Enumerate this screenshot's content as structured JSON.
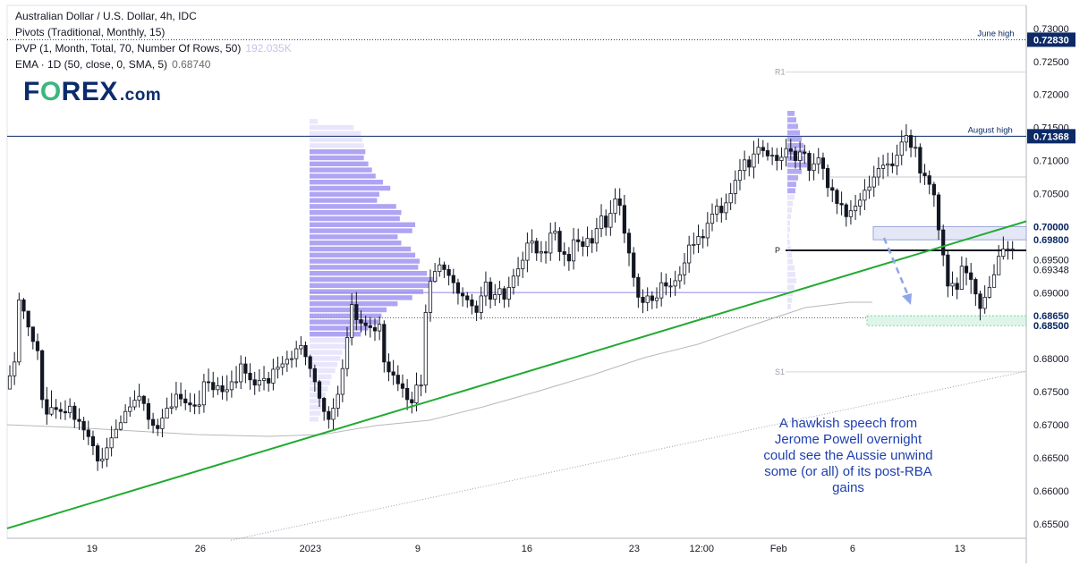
{
  "header": {
    "line1": "Australian Dollar / U.S. Dollar, 4h, IDC",
    "line2": "Pivots (Traditional, Monthly, 15)",
    "line3": "PVP (1, Month, Total, 70, Number Of Rows, 50)",
    "line3_value": "192.035K",
    "line4": "EMA · 1D (50, close, 0, SMA, 5)",
    "line4_value": "0.68740"
  },
  "logo": {
    "text_a": "F",
    "text_o": "O",
    "text_b": "REX",
    "text_c": ".com"
  },
  "annotation": "A hawkish speech from Jerome Powell overnight could see the Aussie unwind some (or all) of its post-RBA gains",
  "colors": {
    "up_candle": "#ffffff",
    "candle_outline": "#131722",
    "trendline": "#22aa33",
    "pvp": "#9b8df0",
    "note": "#1f3fae",
    "arrow": "#8fa6e8",
    "label_bg": "#0d2a66"
  },
  "chart_data": {
    "type": "candlestick",
    "title": "Australian Dollar / U.S. Dollar, 4h, IDC",
    "y_axis": {
      "ticks": [
        "0.73000",
        "0.72500",
        "0.72000",
        "0.71500",
        "0.71000",
        "0.70500",
        "0.70000",
        "0.69500",
        "0.69000",
        "0.68500",
        "0.68000",
        "0.67500",
        "0.67000",
        "0.66500",
        "0.66000",
        "0.65500"
      ],
      "range": [
        0.6528,
        0.7335
      ]
    },
    "x_axis": {
      "ticks": [
        "19",
        "26",
        "2023",
        "9",
        "16",
        "23",
        "12:00",
        "Feb",
        "6",
        "13"
      ]
    },
    "price_labels": [
      {
        "value": "0.72830",
        "caption": "June high",
        "style": "dark"
      },
      {
        "value": "0.71368",
        "caption": "August high",
        "style": "dark"
      },
      {
        "value": "0.70000",
        "caption": "",
        "style": "bold"
      },
      {
        "value": "0.69800",
        "caption": "",
        "style": "bold"
      },
      {
        "value": "0.69348",
        "caption": "",
        "style": "plain"
      },
      {
        "value": "0.68650",
        "caption": "",
        "style": "bold"
      },
      {
        "value": "0.68500",
        "caption": "",
        "style": "bold"
      }
    ],
    "pivot_labels": [
      "R1",
      "P",
      "S1"
    ],
    "pivots": {
      "R1": 0.7234,
      "P": 0.6964,
      "S1": 0.678
    },
    "horizontal_levels": [
      0.7283,
      0.71368,
      0.7075,
      0.69,
      0.6862
    ],
    "zones": [
      {
        "from": 0.698,
        "to": 0.7,
        "name": "resistance zone"
      },
      {
        "from": 0.685,
        "to": 0.6865,
        "name": "support zone"
      }
    ],
    "trendline": {
      "start_price": 0.6543,
      "end_price": 0.7008
    },
    "dotted_trend": {
      "start_price": 0.6525,
      "end_price": 0.6781
    },
    "ema_end": 0.6874,
    "volume_profile_peak": 0.6919,
    "candles": {
      "count": 220,
      "closes": [
        0.6774,
        0.6795,
        0.6889,
        0.6872,
        0.6848,
        0.6826,
        0.6812,
        0.6738,
        0.6716,
        0.6726,
        0.6723,
        0.672,
        0.6718,
        0.6728,
        0.6708,
        0.6705,
        0.6692,
        0.6682,
        0.6668,
        0.6645,
        0.6648,
        0.6665,
        0.668,
        0.6693,
        0.6703,
        0.672,
        0.6727,
        0.6737,
        0.6743,
        0.6732,
        0.6708,
        0.6699,
        0.6694,
        0.671,
        0.6725,
        0.6727,
        0.6746,
        0.6739,
        0.6733,
        0.673,
        0.6728,
        0.673,
        0.6765,
        0.6764,
        0.6753,
        0.6759,
        0.675,
        0.6753,
        0.6765,
        0.6765,
        0.6792,
        0.6778,
        0.6768,
        0.676,
        0.6767,
        0.677,
        0.6763,
        0.6784,
        0.6787,
        0.6792,
        0.6799,
        0.68,
        0.6815,
        0.682,
        0.6803,
        0.6785,
        0.6765,
        0.674,
        0.672,
        0.6708,
        0.6725,
        0.6746,
        0.6785,
        0.6832,
        0.6882,
        0.6859,
        0.6854,
        0.685,
        0.6847,
        0.6842,
        0.6852,
        0.6795,
        0.678,
        0.6775,
        0.6762,
        0.6755,
        0.6738,
        0.6733,
        0.676,
        0.676,
        0.687,
        0.6917,
        0.6932,
        0.6942,
        0.6935,
        0.6926,
        0.6915,
        0.6899,
        0.6895,
        0.6889,
        0.688,
        0.687,
        0.6895,
        0.6916,
        0.689,
        0.6897,
        0.6906,
        0.689,
        0.6908,
        0.6925,
        0.6936,
        0.6949,
        0.6975,
        0.6978,
        0.696,
        0.6962,
        0.696,
        0.699,
        0.6993,
        0.6962,
        0.6958,
        0.6948,
        0.698,
        0.6977,
        0.697,
        0.6982,
        0.6975,
        0.6997,
        0.7016,
        0.6999,
        0.702,
        0.7042,
        0.7032,
        0.699,
        0.696,
        0.6923,
        0.6893,
        0.6885,
        0.6895,
        0.6888,
        0.6892,
        0.6915,
        0.691,
        0.691,
        0.6918,
        0.6927,
        0.6945,
        0.6972,
        0.6973,
        0.6985,
        0.6983,
        0.7005,
        0.7019,
        0.7031,
        0.7021,
        0.7036,
        0.705,
        0.707,
        0.7085,
        0.7101,
        0.709,
        0.711,
        0.712,
        0.7115,
        0.7107,
        0.7108,
        0.71,
        0.7105,
        0.7118,
        0.7114,
        0.71,
        0.7113,
        0.7111,
        0.7085,
        0.7095,
        0.7104,
        0.7088,
        0.7059,
        0.7055,
        0.7035,
        0.7033,
        0.7015,
        0.7024,
        0.7031,
        0.704,
        0.7055,
        0.706,
        0.7075,
        0.7088,
        0.7093,
        0.7095,
        0.7092,
        0.7108,
        0.7128,
        0.7138,
        0.712,
        0.712,
        0.7081,
        0.7077,
        0.7064,
        0.7048,
        0.6995,
        0.6957,
        0.691,
        0.6914,
        0.6905,
        0.694,
        0.693,
        0.692,
        0.6898,
        0.6876,
        0.6893,
        0.6908,
        0.6927,
        0.6955,
        0.6966,
        0.6966,
        0.6966
      ],
      "highs": [
        0.679,
        0.681,
        0.69,
        0.6892,
        0.6869,
        0.6847,
        0.6838,
        0.6814,
        0.6757,
        0.6752,
        0.6739,
        0.6734,
        0.6737,
        0.674,
        0.6734,
        0.6725,
        0.6712,
        0.6706,
        0.6691,
        0.6672,
        0.6665,
        0.668,
        0.6698,
        0.6708,
        0.6714,
        0.6731,
        0.6742,
        0.6752,
        0.6762,
        0.6745,
        0.674,
        0.6718,
        0.6709,
        0.6724,
        0.6741,
        0.6748,
        0.6765,
        0.6764,
        0.6753,
        0.6748,
        0.6747,
        0.6752,
        0.6777,
        0.6785,
        0.678,
        0.6772,
        0.6774,
        0.6775,
        0.6782,
        0.6789,
        0.6805,
        0.6803,
        0.6793,
        0.678,
        0.6784,
        0.6789,
        0.678,
        0.68,
        0.6803,
        0.6804,
        0.6812,
        0.6812,
        0.6827,
        0.6834,
        0.6826,
        0.6806,
        0.6791,
        0.6768,
        0.6742,
        0.6728,
        0.674,
        0.6759,
        0.6799,
        0.6848,
        0.6899,
        0.6901,
        0.6873,
        0.6865,
        0.6863,
        0.6861,
        0.6864,
        0.6858,
        0.6808,
        0.6798,
        0.679,
        0.6776,
        0.6769,
        0.675,
        0.6779,
        0.6776,
        0.6882,
        0.6935,
        0.6945,
        0.6953,
        0.6947,
        0.6942,
        0.6936,
        0.6921,
        0.6908,
        0.6901,
        0.6898,
        0.6888,
        0.6909,
        0.6932,
        0.6923,
        0.6913,
        0.6918,
        0.691,
        0.6924,
        0.6936,
        0.6954,
        0.6962,
        0.6991,
        0.6996,
        0.6983,
        0.6978,
        0.6978,
        0.7006,
        0.7007,
        0.6999,
        0.6976,
        0.6969,
        0.6998,
        0.6997,
        0.6985,
        0.7,
        0.6995,
        0.7013,
        0.7034,
        0.7026,
        0.704,
        0.7058,
        0.7058,
        0.7048,
        0.6997,
        0.6969,
        0.6929,
        0.6905,
        0.6908,
        0.6902,
        0.6908,
        0.6931,
        0.6929,
        0.6922,
        0.6933,
        0.694,
        0.696,
        0.6986,
        0.6991,
        0.7003,
        0.6996,
        0.7022,
        0.7035,
        0.7042,
        0.7044,
        0.705,
        0.7066,
        0.7085,
        0.7102,
        0.7115,
        0.7107,
        0.713,
        0.7134,
        0.7131,
        0.7127,
        0.712,
        0.7119,
        0.712,
        0.7133,
        0.7133,
        0.7121,
        0.7129,
        0.7124,
        0.7115,
        0.7111,
        0.7119,
        0.7112,
        0.7094,
        0.7072,
        0.7058,
        0.7053,
        0.7036,
        0.704,
        0.7048,
        0.7051,
        0.7072,
        0.7077,
        0.7092,
        0.7105,
        0.7109,
        0.7112,
        0.7112,
        0.7124,
        0.7146,
        0.7155,
        0.7147,
        0.7137,
        0.7126,
        0.7095,
        0.7085,
        0.7068,
        0.7052,
        0.7003,
        0.6965,
        0.6932,
        0.6923,
        0.6955,
        0.6953,
        0.6945,
        0.6923,
        0.6903,
        0.6911,
        0.6925,
        0.6943,
        0.6972,
        0.6985,
        0.6978,
        0.6978
      ],
      "lows": [
        0.6755,
        0.676,
        0.679,
        0.686,
        0.6834,
        0.6814,
        0.6798,
        0.6725,
        0.67,
        0.6713,
        0.6709,
        0.6708,
        0.6707,
        0.671,
        0.6695,
        0.6692,
        0.6677,
        0.6669,
        0.6654,
        0.663,
        0.6634,
        0.6636,
        0.6652,
        0.6682,
        0.6691,
        0.6706,
        0.6712,
        0.6722,
        0.6726,
        0.6721,
        0.6693,
        0.6687,
        0.6683,
        0.6681,
        0.6715,
        0.6716,
        0.6722,
        0.6728,
        0.6722,
        0.6719,
        0.6716,
        0.6716,
        0.6718,
        0.675,
        0.6741,
        0.6745,
        0.6738,
        0.6736,
        0.6741,
        0.6755,
        0.6754,
        0.6763,
        0.6753,
        0.6745,
        0.675,
        0.6752,
        0.675,
        0.6752,
        0.677,
        0.6775,
        0.678,
        0.6786,
        0.6787,
        0.6806,
        0.679,
        0.6772,
        0.675,
        0.6727,
        0.6706,
        0.6694,
        0.6693,
        0.6712,
        0.6734,
        0.6773,
        0.682,
        0.6843,
        0.684,
        0.6835,
        0.6832,
        0.6827,
        0.6828,
        0.6779,
        0.6766,
        0.676,
        0.6751,
        0.6741,
        0.6722,
        0.6717,
        0.672,
        0.6743,
        0.6748,
        0.6856,
        0.6915,
        0.6924,
        0.6922,
        0.6911,
        0.6898,
        0.6882,
        0.6879,
        0.6877,
        0.6867,
        0.6857,
        0.6859,
        0.688,
        0.6876,
        0.688,
        0.6884,
        0.6877,
        0.6878,
        0.6897,
        0.691,
        0.6922,
        0.6931,
        0.696,
        0.6948,
        0.6946,
        0.6944,
        0.6948,
        0.6979,
        0.6948,
        0.694,
        0.6933,
        0.6935,
        0.6962,
        0.6955,
        0.6955,
        0.696,
        0.6962,
        0.6984,
        0.6986,
        0.6986,
        0.7006,
        0.7017,
        0.6975,
        0.694,
        0.6909,
        0.6877,
        0.6869,
        0.6872,
        0.6875,
        0.6876,
        0.6879,
        0.6896,
        0.6893,
        0.6895,
        0.6906,
        0.6912,
        0.693,
        0.6958,
        0.696,
        0.6967,
        0.697,
        0.6993,
        0.7007,
        0.7006,
        0.701,
        0.7025,
        0.7034,
        0.7055,
        0.7071,
        0.7076,
        0.7073,
        0.7095,
        0.7105,
        0.71,
        0.7093,
        0.7085,
        0.7086,
        0.7091,
        0.7101,
        0.7088,
        0.7086,
        0.7095,
        0.7069,
        0.707,
        0.708,
        0.7071,
        0.7045,
        0.7037,
        0.7019,
        0.7017,
        0.7,
        0.7003,
        0.701,
        0.7017,
        0.7025,
        0.7042,
        0.7045,
        0.7062,
        0.7072,
        0.7076,
        0.7081,
        0.7078,
        0.7093,
        0.7114,
        0.7105,
        0.7105,
        0.7066,
        0.7063,
        0.7049,
        0.703,
        0.698,
        0.694,
        0.6893,
        0.6895,
        0.689,
        0.692,
        0.6911,
        0.6898,
        0.688,
        0.6858,
        0.6868,
        0.6891,
        0.6908,
        0.694,
        0.695,
        0.695,
        0.695
      ]
    }
  }
}
